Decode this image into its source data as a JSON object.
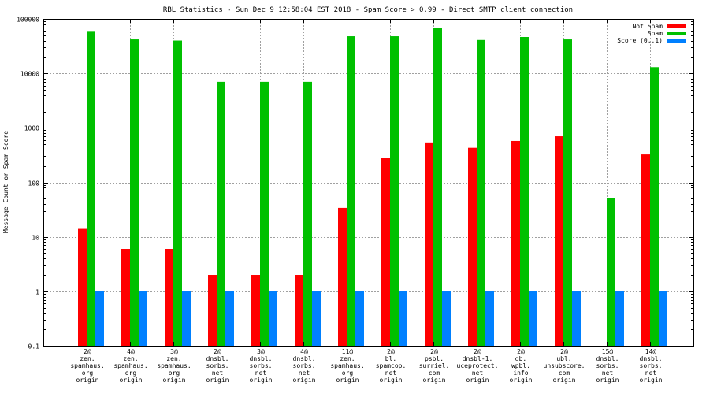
{
  "chart_data": {
    "type": "bar",
    "title": "RBL Statistics - Sun Dec  9 12:58:04 EST 2018 - Spam Score > 0.99 - Direct SMTP client connection",
    "xlabel": "",
    "ylabel": "Message Count or Spam Score",
    "yscale": "log",
    "ylim": [
      0.1,
      100000
    ],
    "yticks": [
      "0.1",
      "1",
      "10",
      "100",
      "1000",
      "10000",
      "100000"
    ],
    "grid": true,
    "legend_position": "top-right",
    "categories": [
      [
        "2@",
        "zen.",
        "spamhaus.",
        "org",
        "origin"
      ],
      [
        "4@",
        "zen.",
        "spamhaus.",
        "org",
        "origin"
      ],
      [
        "3@",
        "zen.",
        "spamhaus.",
        "org",
        "origin"
      ],
      [
        "2@",
        "dnsbl.",
        "sorbs.",
        "net",
        "origin"
      ],
      [
        "3@",
        "dnsbl.",
        "sorbs.",
        "net",
        "origin"
      ],
      [
        "4@",
        "dnsbl.",
        "sorbs.",
        "net",
        "origin"
      ],
      [
        "11@",
        "zen.",
        "spamhaus.",
        "org",
        "origin"
      ],
      [
        "2@",
        "bl.",
        "spamcop.",
        "net",
        "origin"
      ],
      [
        "2@",
        "psbl.",
        "surriel.",
        "com",
        "origin"
      ],
      [
        "2@",
        "dnsbl-1.",
        "uceprotect.",
        "net",
        "origin"
      ],
      [
        "2@",
        "db.",
        "wpbl.",
        "info",
        "origin"
      ],
      [
        "2@",
        "ubl.",
        "unsubscore.",
        "com",
        "origin"
      ],
      [
        "15@",
        "dnsbl.",
        "sorbs.",
        "net",
        "origin"
      ],
      [
        "14@",
        "dnsbl.",
        "sorbs.",
        "net",
        "origin"
      ]
    ],
    "series": [
      {
        "name": "Not Spam",
        "color": "#ff0000",
        "values": [
          14,
          6,
          6,
          2,
          2,
          2,
          34,
          285,
          540,
          430,
          575,
          700,
          null,
          325
        ]
      },
      {
        "name": "Spam",
        "color": "#00c000",
        "values": [
          60000,
          42000,
          40000,
          7000,
          7000,
          7000,
          48000,
          48000,
          69000,
          41000,
          46500,
          42000,
          52,
          13000
        ]
      },
      {
        "name": "Score (0..1)",
        "color": "#0080ff",
        "values": [
          1,
          1,
          1,
          1,
          1,
          1,
          1,
          1,
          1,
          1,
          1,
          1,
          1,
          1
        ]
      }
    ]
  }
}
